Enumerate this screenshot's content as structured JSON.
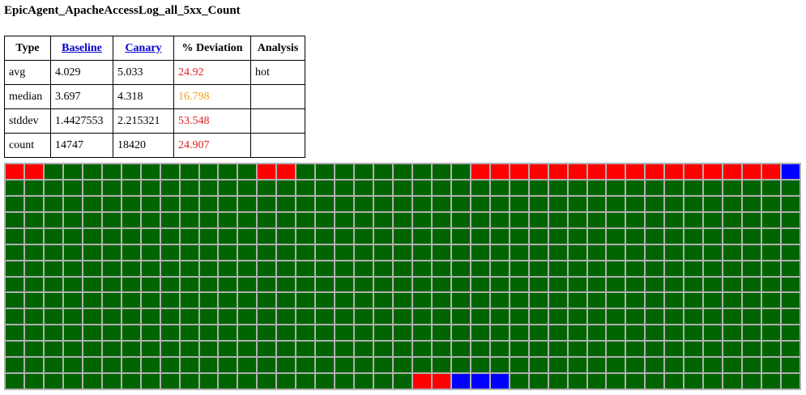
{
  "title": "EpicAgent_ApacheAccessLog_all_5xx_Count",
  "table": {
    "headers": {
      "type": "Type",
      "baseline": "Baseline",
      "canary": "Canary",
      "deviation": "% Deviation",
      "analysis": "Analysis"
    },
    "rows": [
      {
        "type": "avg",
        "baseline": "4.029",
        "canary": "5.033",
        "deviation": "24.92",
        "deviation_color": "#e02020",
        "analysis": "hot"
      },
      {
        "type": "median",
        "baseline": "3.697",
        "canary": "4.318",
        "deviation": "16.798",
        "deviation_color": "#f0a020",
        "analysis": ""
      },
      {
        "type": "stddev",
        "baseline": "1.4427553",
        "canary": "2.215321",
        "deviation": "53.548",
        "deviation_color": "#e02020",
        "analysis": ""
      },
      {
        "type": "count",
        "baseline": "14747",
        "canary": "18420",
        "deviation": "24.907",
        "deviation_color": "#e02020",
        "analysis": ""
      }
    ]
  },
  "heatmap": {
    "columns": 41,
    "rows": 14,
    "colors": {
      "G": "#006400",
      "R": "#ff0000",
      "B": "#0000ff"
    },
    "row_codes": [
      "RRGGGGGGGGGGGRRGGGGGGGGGRRRRRRRRRRRRRRRRB",
      "GGGGGGGGGGGGGGGGGGGGGGGGGGGGGGGGGGGGGGGGG",
      "GGGGGGGGGGGGGGGGGGGGGGGGGGGGGGGGGGGGGGGGG",
      "GGGGGGGGGGGGGGGGGGGGGGGGGGGGGGGGGGGGGGGGG",
      "GGGGGGGGGGGGGGGGGGGGGGGGGGGGGGGGGGGGGGGGG",
      "GGGGGGGGGGGGGGGGGGGGGGGGGGGGGGGGGGGGGGGGG",
      "GGGGGGGGGGGGGGGGGGGGGGGGGGGGGGGGGGGGGGGGG",
      "GGGGGGGGGGGGGGGGGGGGGGGGGGGGGGGGGGGGGGGGG",
      "GGGGGGGGGGGGGGGGGGGGGGGGGGGGGGGGGGGGGGGGG",
      "GGGGGGGGGGGGGGGGGGGGGGGGGGGGGGGGGGGGGGGGG",
      "GGGGGGGGGGGGGGGGGGGGGGGGGGGGGGGGGGGGGGGGG",
      "GGGGGGGGGGGGGGGGGGGGGGGGGGGGGGGGGGGGGGGGG",
      "GGGGGGGGGGGGGGGGGGGGGGGGGGGGGGGGGGGGGGGGG",
      "GGGGGGGGGGGGGGGGGGGGGRRBBBGGGGGGGGGGGGGGG"
    ]
  }
}
